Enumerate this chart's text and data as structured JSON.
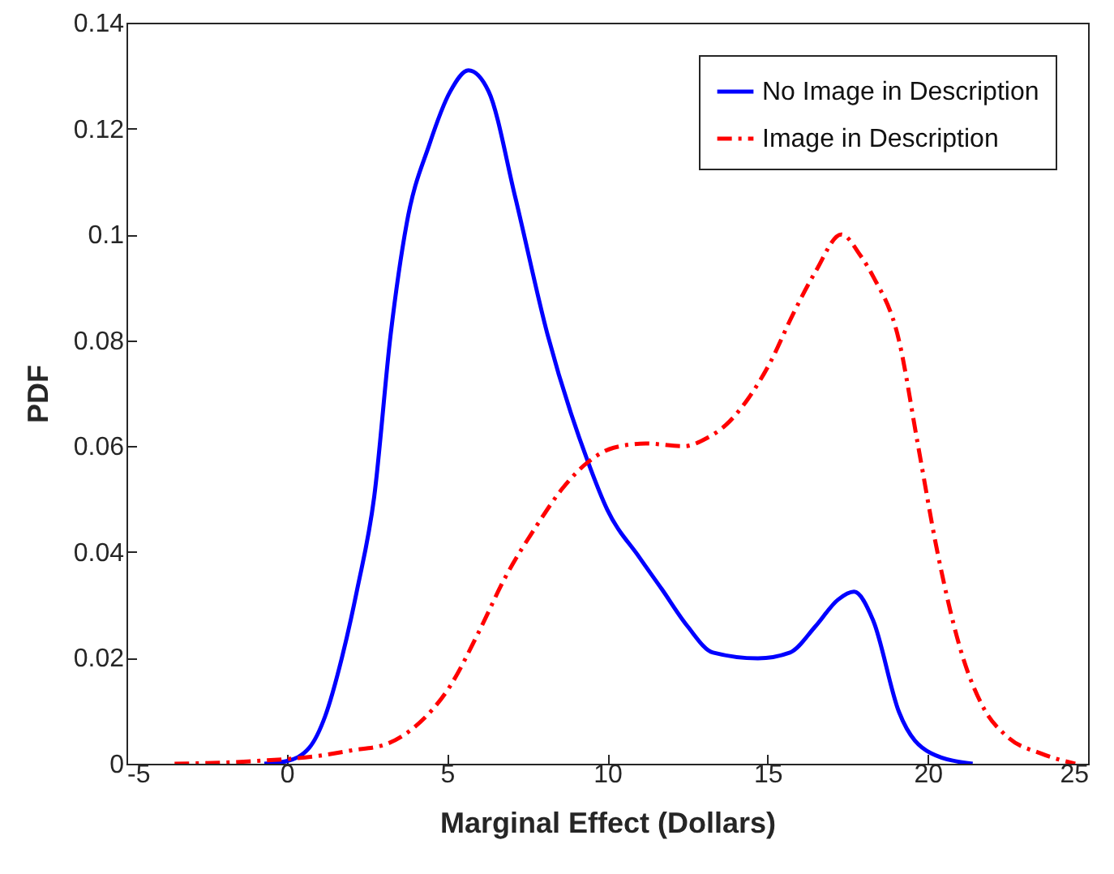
{
  "chart_data": {
    "type": "line",
    "xlabel": "Marginal Effect (Dollars)",
    "ylabel": "PDF",
    "xlim": [
      -5,
      25
    ],
    "xticks": [
      -5,
      0,
      5,
      10,
      15,
      20,
      25
    ],
    "ylim": [
      0,
      0.14
    ],
    "yticks": [
      0,
      0.02,
      0.04,
      0.06,
      0.08,
      0.1,
      0.12,
      0.14
    ],
    "grid": false,
    "legend": "top right",
    "series": [
      {
        "name": "No Image in Description",
        "color": "#0000ff",
        "line_style": "solid",
        "x": [
          -0.7,
          0,
          0.7,
          1.2,
          1.72,
          2.2,
          2.73,
          3.24,
          3.74,
          4.45,
          5.1,
          5.67,
          6.3,
          7.13,
          8.14,
          9.4,
          10,
          11,
          11.7,
          12.5,
          13.3,
          14.7,
          15.7,
          16.5,
          17.2,
          17.7,
          18.3,
          19.1,
          20.1,
          21.4
        ],
        "values": [
          0,
          0.0005,
          0.003,
          0.009,
          0.02,
          0.033,
          0.0505,
          0.081,
          0.102,
          0.117,
          0.127,
          0.131,
          0.127,
          0.107,
          0.081,
          0.057,
          0.048,
          0.039,
          0.033,
          0.026,
          0.021,
          0.0199,
          0.021,
          0.026,
          0.031,
          0.0325,
          0.027,
          0.0098,
          0.002,
          0
        ]
      },
      {
        "name": "Image in Description",
        "color": "#ff0000",
        "line_style": "dashdot",
        "x": [
          -3.5,
          -1,
          1,
          2,
          3.1,
          4,
          5.1,
          6,
          6.8,
          7.8,
          8.6,
          9.4,
          10.2,
          11.2,
          12.4,
          13.1,
          13.7,
          14.4,
          15.1,
          15.8,
          16.5,
          17.3,
          17.9,
          18.3,
          19.1,
          19.7,
          20.3,
          21.1,
          21.7,
          22.5,
          23.5,
          24.6
        ],
        "values": [
          0,
          0.0005,
          0.0015,
          0.0025,
          0.0037,
          0.007,
          0.0147,
          0.025,
          0.035,
          0.045,
          0.052,
          0.057,
          0.0597,
          0.0605,
          0.06,
          0.0615,
          0.064,
          0.069,
          0.076,
          0.085,
          0.093,
          0.1,
          0.096,
          0.092,
          0.08,
          0.06,
          0.04,
          0.02,
          0.011,
          0.005,
          0.002,
          0
        ]
      }
    ]
  }
}
